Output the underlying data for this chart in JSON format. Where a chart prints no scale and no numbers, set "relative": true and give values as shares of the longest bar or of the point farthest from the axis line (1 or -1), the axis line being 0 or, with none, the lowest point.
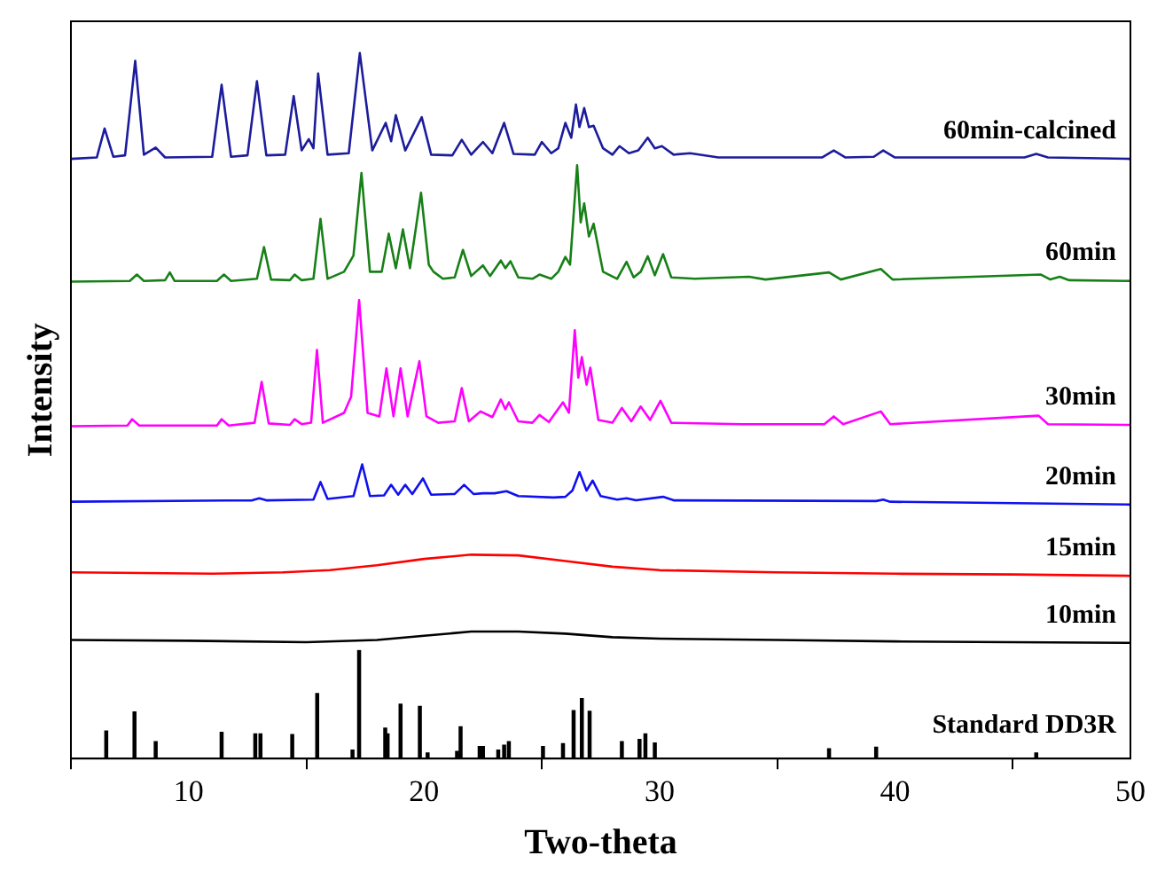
{
  "chart_data": {
    "type": "line",
    "xlabel": "Two-theta",
    "ylabel": "Intensity",
    "relative": true,
    "xlim": [
      5,
      50
    ],
    "xticks": [
      10,
      20,
      30,
      40,
      50
    ],
    "tick_labels": "x",
    "grid": false,
    "legend": false,
    "marker": "none",
    "line_style": "solid",
    "series": [
      {
        "name": "60min-calcined",
        "color": "#1c1c9c",
        "x": [
          5,
          6.1,
          6.43,
          6.8,
          7.3,
          7.73,
          8.1,
          8.6,
          9.0,
          11.0,
          11.4,
          11.8,
          12.5,
          12.9,
          13.3,
          14.1,
          14.46,
          14.8,
          15.1,
          15.3,
          15.5,
          15.9,
          16.8,
          17.27,
          17.8,
          18.37,
          18.6,
          18.8,
          19.2,
          19.9,
          20.3,
          21.2,
          21.6,
          22.0,
          22.5,
          22.9,
          23.4,
          23.8,
          24.7,
          25.0,
          25.4,
          25.7,
          26.0,
          26.25,
          26.45,
          26.6,
          26.8,
          27.0,
          27.2,
          27.6,
          28.0,
          28.3,
          28.7,
          29.1,
          29.5,
          29.8,
          30.1,
          30.6,
          31.3,
          32.5,
          36.9,
          37.4,
          37.9,
          39.1,
          39.5,
          40.0,
          45.5,
          46.0,
          46.5,
          50
        ],
        "values": [
          0.85,
          0.852,
          0.893,
          0.853,
          0.855,
          0.989,
          0.856,
          0.866,
          0.852,
          0.853,
          0.955,
          0.853,
          0.855,
          0.96,
          0.855,
          0.856,
          0.939,
          0.862,
          0.878,
          0.865,
          0.971,
          0.856,
          0.858,
          1,
          0.862,
          0.901,
          0.875,
          0.912,
          0.862,
          0.909,
          0.856,
          0.855,
          0.877,
          0.856,
          0.874,
          0.858,
          0.901,
          0.857,
          0.856,
          0.874,
          0.858,
          0.865,
          0.901,
          0.88,
          0.927,
          0.895,
          0.922,
          0.895,
          0.897,
          0.865,
          0.856,
          0.868,
          0.858,
          0.862,
          0.88,
          0.865,
          0.868,
          0.856,
          0.858,
          0.852,
          0.852,
          0.862,
          0.852,
          0.853,
          0.862,
          0.852,
          0.852,
          0.857,
          0.852,
          0.85
        ]
      },
      {
        "name": "60min",
        "color": "#178017",
        "x": [
          5,
          7.5,
          7.8,
          8.1,
          9.0,
          9.2,
          9.4,
          11.2,
          11.5,
          11.8,
          12.9,
          13.2,
          13.5,
          14.3,
          14.5,
          14.8,
          15.3,
          15.6,
          15.9,
          16.6,
          17.0,
          17.34,
          17.7,
          18.2,
          18.5,
          18.8,
          19.1,
          19.4,
          19.87,
          20.2,
          20.4,
          20.8,
          21.3,
          21.65,
          22.0,
          22.5,
          22.8,
          23.26,
          23.45,
          23.67,
          24.0,
          24.6,
          24.9,
          25.4,
          25.7,
          26.0,
          26.2,
          26.5,
          26.65,
          26.8,
          27.0,
          27.2,
          27.6,
          28.2,
          28.6,
          28.9,
          29.2,
          29.5,
          29.8,
          30.15,
          30.5,
          31.5,
          33.8,
          34.5,
          37.2,
          37.7,
          39.4,
          39.9,
          46.2,
          46.6,
          47.0,
          47.4,
          50
        ],
        "values": [
          0.676,
          0.677,
          0.686,
          0.677,
          0.678,
          0.689,
          0.677,
          0.677,
          0.686,
          0.677,
          0.68,
          0.725,
          0.679,
          0.678,
          0.686,
          0.678,
          0.68,
          0.765,
          0.68,
          0.69,
          0.713,
          0.83,
          0.69,
          0.69,
          0.744,
          0.695,
          0.75,
          0.695,
          0.802,
          0.7,
          0.69,
          0.68,
          0.682,
          0.721,
          0.684,
          0.699,
          0.684,
          0.706,
          0.695,
          0.705,
          0.682,
          0.68,
          0.686,
          0.68,
          0.69,
          0.711,
          0.7,
          0.841,
          0.76,
          0.787,
          0.74,
          0.758,
          0.69,
          0.68,
          0.704,
          0.682,
          0.69,
          0.712,
          0.685,
          0.715,
          0.682,
          0.68,
          0.683,
          0.679,
          0.689,
          0.679,
          0.694,
          0.679,
          0.686,
          0.679,
          0.683,
          0.678,
          0.677
        ]
      },
      {
        "name": "30min",
        "color": "#ff00ff",
        "x": [
          5,
          7.4,
          7.6,
          7.9,
          11.2,
          11.4,
          11.7,
          12.8,
          13.1,
          13.4,
          14.3,
          14.5,
          14.8,
          15.2,
          15.45,
          15.7,
          16.6,
          16.9,
          17.24,
          17.6,
          18.1,
          18.4,
          18.7,
          19.0,
          19.3,
          19.8,
          20.1,
          20.6,
          21.3,
          21.6,
          21.9,
          22.4,
          22.9,
          23.26,
          23.45,
          23.6,
          24.0,
          24.6,
          24.9,
          25.3,
          25.9,
          26.15,
          26.4,
          26.55,
          26.7,
          26.9,
          27.06,
          27.4,
          28.0,
          28.4,
          28.8,
          29.2,
          29.6,
          30.04,
          30.5,
          33.5,
          37.0,
          37.4,
          37.8,
          39.4,
          39.8,
          46.1,
          46.5,
          50
        ],
        "values": [
          0.471,
          0.472,
          0.481,
          0.472,
          0.472,
          0.481,
          0.472,
          0.476,
          0.534,
          0.475,
          0.473,
          0.481,
          0.474,
          0.476,
          0.579,
          0.476,
          0.49,
          0.513,
          0.65,
          0.49,
          0.485,
          0.553,
          0.485,
          0.553,
          0.485,
          0.563,
          0.485,
          0.476,
          0.478,
          0.525,
          0.478,
          0.492,
          0.484,
          0.509,
          0.495,
          0.505,
          0.478,
          0.476,
          0.487,
          0.477,
          0.505,
          0.49,
          0.607,
          0.54,
          0.569,
          0.53,
          0.554,
          0.48,
          0.476,
          0.497,
          0.478,
          0.499,
          0.48,
          0.507,
          0.476,
          0.474,
          0.474,
          0.485,
          0.474,
          0.492,
          0.474,
          0.486,
          0.474,
          0.473
        ]
      },
      {
        "name": "20min",
        "color": "#1010f0",
        "x": [
          5,
          12.7,
          13.0,
          13.3,
          15.3,
          15.6,
          15.9,
          17.0,
          17.37,
          17.7,
          18.3,
          18.6,
          18.9,
          19.2,
          19.5,
          19.95,
          20.3,
          21.3,
          21.7,
          22.1,
          22.5,
          23.0,
          23.5,
          24.0,
          25.5,
          26.0,
          26.3,
          26.6,
          26.9,
          27.16,
          27.5,
          28.2,
          28.6,
          29.0,
          30.15,
          30.6,
          39.2,
          39.5,
          39.8,
          50
        ],
        "values": [
          0.364,
          0.366,
          0.369,
          0.366,
          0.367,
          0.392,
          0.368,
          0.372,
          0.417,
          0.372,
          0.373,
          0.388,
          0.374,
          0.388,
          0.375,
          0.397,
          0.374,
          0.375,
          0.388,
          0.375,
          0.376,
          0.376,
          0.379,
          0.372,
          0.37,
          0.371,
          0.38,
          0.406,
          0.38,
          0.394,
          0.372,
          0.367,
          0.369,
          0.366,
          0.371,
          0.366,
          0.365,
          0.367,
          0.364,
          0.36
        ]
      },
      {
        "name": "15min",
        "color": "#ff0000",
        "x": [
          5,
          8,
          11,
          14,
          16,
          18,
          20,
          22,
          24,
          26,
          28,
          30,
          35,
          40,
          45,
          50
        ],
        "values": [
          0.264,
          0.263,
          0.262,
          0.264,
          0.267,
          0.274,
          0.283,
          0.289,
          0.288,
          0.28,
          0.272,
          0.267,
          0.264,
          0.262,
          0.261,
          0.259
        ]
      },
      {
        "name": "10min",
        "color": "#000000",
        "x": [
          5,
          10,
          15,
          18,
          20,
          22,
          24,
          26,
          28,
          30,
          35,
          40,
          45,
          50
        ],
        "values": [
          0.168,
          0.167,
          0.165,
          0.168,
          0.174,
          0.18,
          0.18,
          0.177,
          0.172,
          0.17,
          0.168,
          0.166,
          0.165,
          0.164
        ]
      },
      {
        "name": "Standard DD3R",
        "type": "bar",
        "color": "#000000",
        "x": [
          6.5,
          7.7,
          8.6,
          11.4,
          12.83,
          13.05,
          14.4,
          15.46,
          16.96,
          17.24,
          18.35,
          18.45,
          19.0,
          19.82,
          20.15,
          21.4,
          21.55,
          22.36,
          22.5,
          23.15,
          23.4,
          23.6,
          25.05,
          25.9,
          26.35,
          26.7,
          27.03,
          28.4,
          29.15,
          29.4,
          29.8,
          37.2,
          39.2,
          46.0
        ],
        "values": [
          0.039,
          0.066,
          0.024,
          0.037,
          0.035,
          0.035,
          0.034,
          0.092,
          0.012,
          0.153,
          0.043,
          0.035,
          0.077,
          0.074,
          0.008,
          0.01,
          0.045,
          0.017,
          0.017,
          0.012,
          0.019,
          0.024,
          0.017,
          0.021,
          0.068,
          0.085,
          0.067,
          0.024,
          0.027,
          0.035,
          0.022,
          0.014,
          0.016,
          0.008
        ]
      }
    ]
  }
}
